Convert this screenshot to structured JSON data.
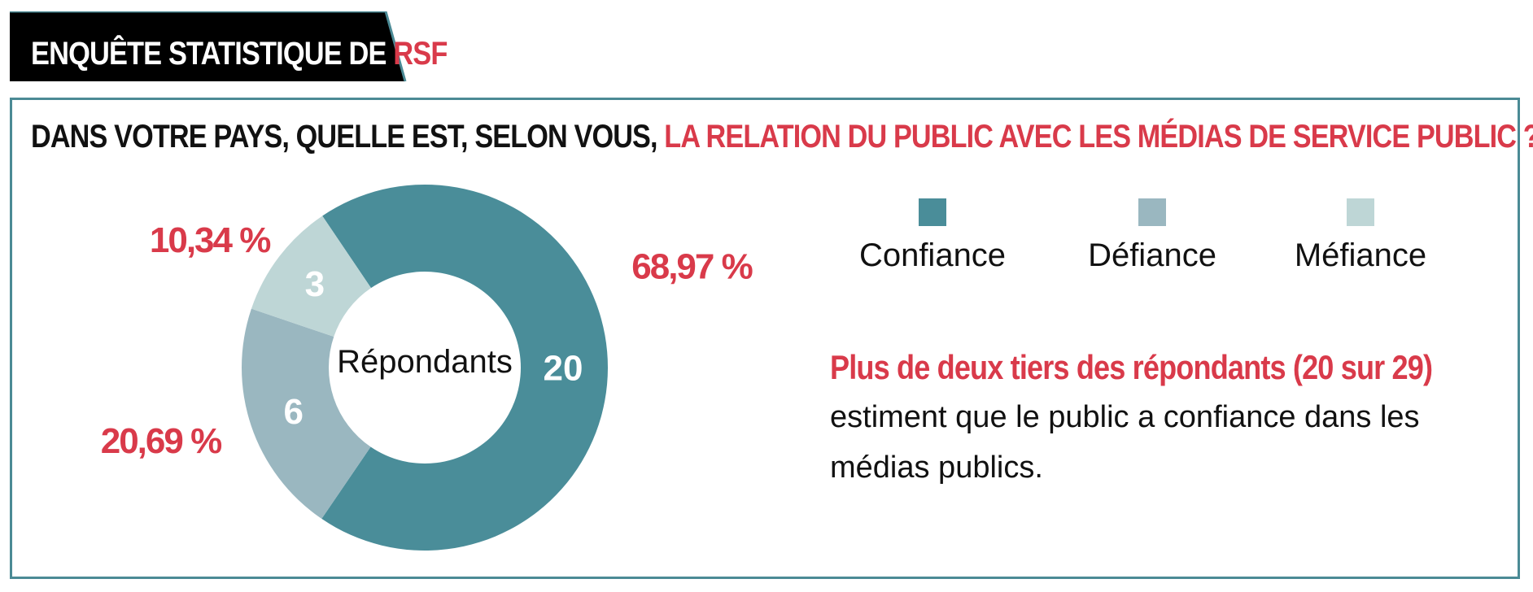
{
  "header": {
    "title_prefix": "ENQUÊTE STATISTIQUE DE ",
    "title_accent": "RSF"
  },
  "question": {
    "prefix": "DANS VOTRE PAYS, QUELLE EST, SELON VOUS, ",
    "accent": "LA RELATION DU PUBLIC AVEC LES MÉDIAS DE SERVICE PUBLIC ?"
  },
  "colors": {
    "teal": "#4b8a95",
    "red": "#d93a4a",
    "confiance": "#4a8d99",
    "defiance": "#9ab7c0",
    "mefiance": "#bed6d6"
  },
  "chart_data": {
    "type": "pie",
    "style": "donut",
    "center_label": "Répondants",
    "total": 29,
    "slices": [
      {
        "name": "Confiance",
        "count": 20,
        "count_label": "20",
        "percent_label": "68,97 %",
        "color": "#4a8d99"
      },
      {
        "name": "Défiance",
        "count": 6,
        "count_label": "6",
        "percent_label": "20,69 %",
        "color": "#9ab7c0"
      },
      {
        "name": "Méfiance",
        "count": 3,
        "count_label": "3",
        "percent_label": "10,34 %",
        "color": "#bed6d6"
      }
    ],
    "legend": [
      "Confiance",
      "Défiance",
      "Méfiance"
    ],
    "legend_position": "top-right"
  },
  "summary": {
    "highlight": "Plus de deux tiers des répondants (20 sur 29)",
    "body": "estiment que le public a confiance dans les médias publics."
  }
}
